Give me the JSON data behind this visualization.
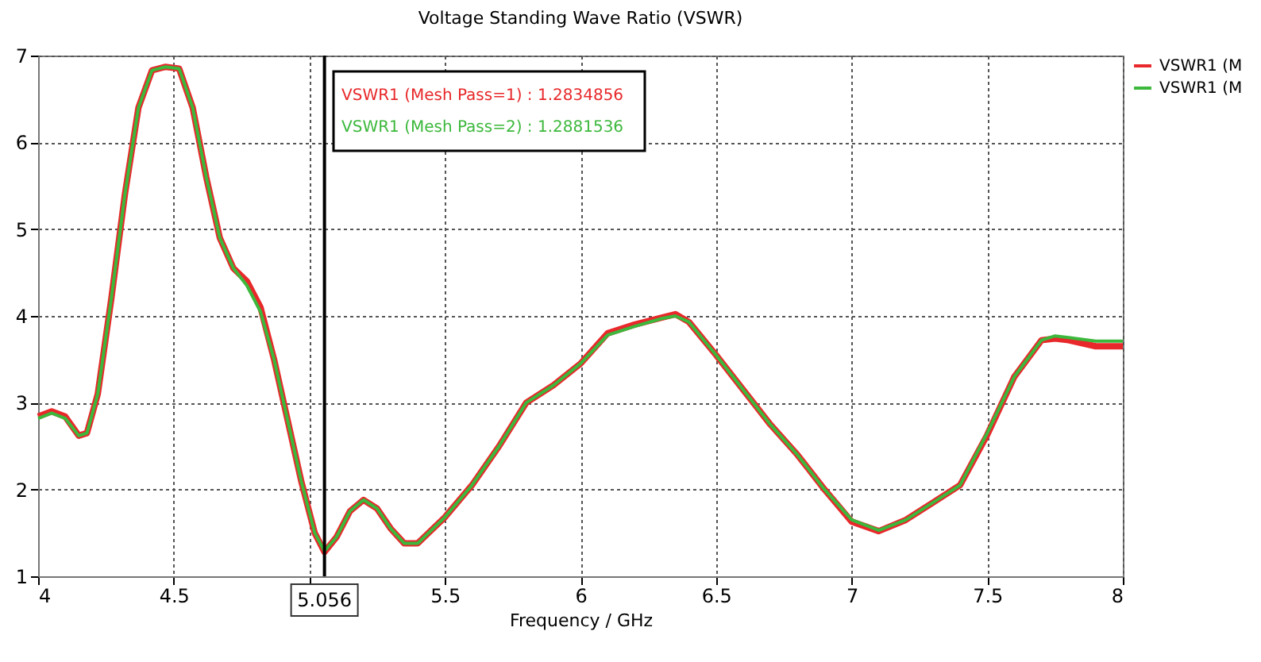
{
  "chart_data": {
    "type": "line",
    "title": "Voltage Standing Wave Ratio (VSWR)",
    "xlabel": "Frequency / GHz",
    "x": [
      4.0,
      4.05,
      4.1,
      4.15,
      4.18,
      4.22,
      4.27,
      4.32,
      4.37,
      4.42,
      4.47,
      4.52,
      4.57,
      4.62,
      4.67,
      4.72,
      4.77,
      4.82,
      4.87,
      4.92,
      4.97,
      5.02,
      5.056,
      5.1,
      5.15,
      5.2,
      5.25,
      5.3,
      5.35,
      5.4,
      5.5,
      5.6,
      5.7,
      5.8,
      5.9,
      6.0,
      6.1,
      6.2,
      6.3,
      6.35,
      6.4,
      6.5,
      6.6,
      6.7,
      6.8,
      6.9,
      7.0,
      7.1,
      7.2,
      7.3,
      7.4,
      7.5,
      7.6,
      7.7,
      7.75,
      7.8,
      7.9,
      8.0
    ],
    "series": [
      {
        "name": "VSWR1 (M",
        "color": "#e8282a",
        "values": [
          2.84,
          2.9,
          2.84,
          2.62,
          2.65,
          3.1,
          4.2,
          5.4,
          6.4,
          6.83,
          6.87,
          6.85,
          6.4,
          5.6,
          4.9,
          4.55,
          4.4,
          4.1,
          3.5,
          2.8,
          2.1,
          1.5,
          1.28,
          1.45,
          1.75,
          1.88,
          1.78,
          1.55,
          1.38,
          1.38,
          1.68,
          2.05,
          2.5,
          3.0,
          3.2,
          3.45,
          3.8,
          3.9,
          3.98,
          4.02,
          3.93,
          3.55,
          3.15,
          2.75,
          2.4,
          2.0,
          1.63,
          1.52,
          1.65,
          1.85,
          2.05,
          2.63,
          3.3,
          3.72,
          3.74,
          3.72,
          3.65,
          3.65
        ]
      },
      {
        "name": "VSWR1 (M",
        "color": "#3cb83c",
        "values": [
          2.82,
          2.88,
          2.82,
          2.62,
          2.65,
          3.1,
          4.2,
          5.4,
          6.4,
          6.83,
          6.87,
          6.85,
          6.4,
          5.6,
          4.9,
          4.55,
          4.35,
          4.05,
          3.5,
          2.8,
          2.1,
          1.5,
          1.29,
          1.45,
          1.75,
          1.88,
          1.78,
          1.55,
          1.38,
          1.38,
          1.68,
          2.05,
          2.5,
          3.0,
          3.2,
          3.45,
          3.78,
          3.88,
          3.97,
          4.0,
          3.93,
          3.55,
          3.15,
          2.75,
          2.4,
          2.0,
          1.65,
          1.53,
          1.65,
          1.85,
          2.05,
          2.65,
          3.3,
          3.72,
          3.77,
          3.75,
          3.71,
          3.71
        ]
      }
    ],
    "xlim": [
      4,
      8
    ],
    "xticks": [
      4,
      4.5,
      {
        "value": 5,
        "label": null
      },
      5.5,
      6,
      6.5,
      7,
      7.5,
      8
    ],
    "ylim": [
      1,
      7
    ],
    "yticks": [
      1,
      2,
      3,
      4,
      5,
      6,
      7
    ],
    "ref_lines": [
      {
        "axis": "x",
        "value": 5.056,
        "label": "5.056",
        "color": "#000000"
      }
    ],
    "annotations": [
      "VSWR1 (Mesh Pass=1) : 1.2834856",
      "VSWR1 (Mesh Pass=2) : 1.2881536"
    ],
    "grid": true,
    "legend": "right",
    "line_style": "solid",
    "marker": "none"
  }
}
